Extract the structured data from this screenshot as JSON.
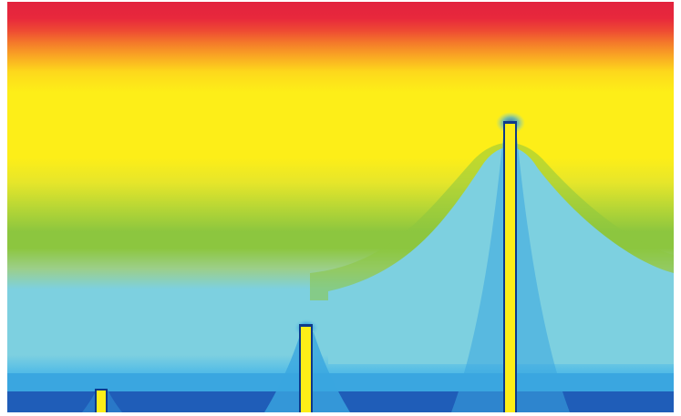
{
  "figure": {
    "kind": "contour field plot",
    "text_labels": "none visible",
    "rods": [
      {
        "id": "short",
        "relative_height": "short"
      },
      {
        "id": "medium",
        "relative_height": "medium"
      },
      {
        "id": "tall",
        "relative_height": "tall"
      }
    ]
  },
  "colors": {
    "background_border": "#ffffff",
    "band_red": "#e8283c",
    "band_orange": "#f47a2a",
    "band_yellow": "#fdee18",
    "band_green": "#8cc63f",
    "band_light_blue": "#7dd0e0",
    "band_mid_blue": "#3aa6e0",
    "band_dark_blue": "#1f5db8",
    "rod_fill": "#fdee18",
    "rod_edge": "#0e3a8a"
  }
}
